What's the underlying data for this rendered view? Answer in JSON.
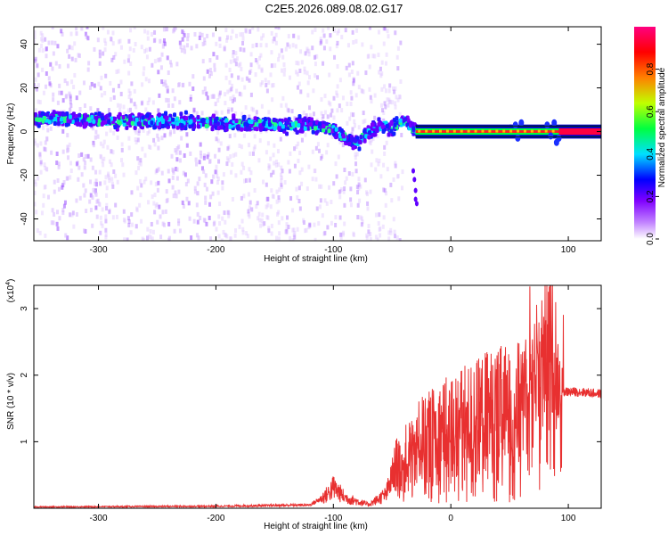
{
  "title": "C2E5.2026.089.08.02.G17",
  "chart_data": [
    {
      "type": "heatmap",
      "xlabel": "Height of straight line (km)",
      "ylabel": "Frequency (Hz)",
      "xlim": [
        -355,
        128
      ],
      "ylim": [
        -50,
        48
      ],
      "xticks": [
        -300,
        -200,
        -100,
        0,
        100
      ],
      "yticks": [
        -40,
        -20,
        0,
        20,
        40
      ],
      "colorbar": {
        "label": "Normalized spectral amplitude",
        "range": [
          0,
          1
        ],
        "ticks": [
          0.0,
          0.2,
          0.4,
          0.6,
          0.8
        ],
        "tick_labels": [
          "0.0",
          "0.2",
          "0.4",
          "0.6",
          "0.8"
        ],
        "colors": [
          "#ffffff",
          "#c080ff",
          "#8000ff",
          "#0000ff",
          "#00e0ff",
          "#00ff40",
          "#c0ff00",
          "#ff8000",
          "#ff0000",
          "#ff0080"
        ]
      },
      "ridge": [
        {
          "x": -355,
          "f": 6
        },
        {
          "x": -300,
          "f": 5
        },
        {
          "x": -250,
          "f": 5
        },
        {
          "x": -200,
          "f": 4
        },
        {
          "x": -150,
          "f": 3
        },
        {
          "x": -120,
          "f": 3
        },
        {
          "x": -100,
          "f": 1
        },
        {
          "x": -90,
          "f": -3
        },
        {
          "x": -80,
          "f": -5
        },
        {
          "x": -70,
          "f": 0
        },
        {
          "x": -60,
          "f": 3
        },
        {
          "x": -50,
          "f": 2
        },
        {
          "x": -40,
          "f": 5
        },
        {
          "x": -30,
          "f": 0
        },
        {
          "x": 0,
          "f": 0
        },
        {
          "x": 60,
          "f": 0
        },
        {
          "x": 92,
          "f": 0
        },
        {
          "x": 128,
          "f": 0
        }
      ]
    },
    {
      "type": "line",
      "xlabel": "Height of straight line (km)",
      "ylabel": "SNR (10 * v/v)",
      "multiplier": "(x10",
      "multiplier_exp": "4",
      "xlim": [
        -355,
        128
      ],
      "ylim": [
        0,
        3.35
      ],
      "xticks": [
        -300,
        -200,
        -100,
        0,
        100
      ],
      "yticks": [
        1,
        2,
        3
      ],
      "color": "#e83030",
      "envelope": [
        {
          "x": -355,
          "y": 0.02
        },
        {
          "x": -200,
          "y": 0.03
        },
        {
          "x": -120,
          "y": 0.05
        },
        {
          "x": -105,
          "y": 0.2
        },
        {
          "x": -100,
          "y": 0.3
        },
        {
          "x": -90,
          "y": 0.15
        },
        {
          "x": -70,
          "y": 0.05
        },
        {
          "x": -55,
          "y": 0.2
        },
        {
          "x": -45,
          "y": 0.7
        },
        {
          "x": -35,
          "y": 1.0
        },
        {
          "x": -25,
          "y": 1.2
        },
        {
          "x": -15,
          "y": 1.3
        },
        {
          "x": 0,
          "y": 1.45
        },
        {
          "x": 15,
          "y": 1.55
        },
        {
          "x": 30,
          "y": 1.7
        },
        {
          "x": 45,
          "y": 1.75
        },
        {
          "x": 60,
          "y": 1.8
        },
        {
          "x": 70,
          "y": 2.0
        },
        {
          "x": 80,
          "y": 2.1
        },
        {
          "x": 90,
          "y": 1.9
        },
        {
          "x": 96,
          "y": 1.75
        },
        {
          "x": 110,
          "y": 1.75
        },
        {
          "x": 128,
          "y": 1.72
        }
      ]
    }
  ]
}
